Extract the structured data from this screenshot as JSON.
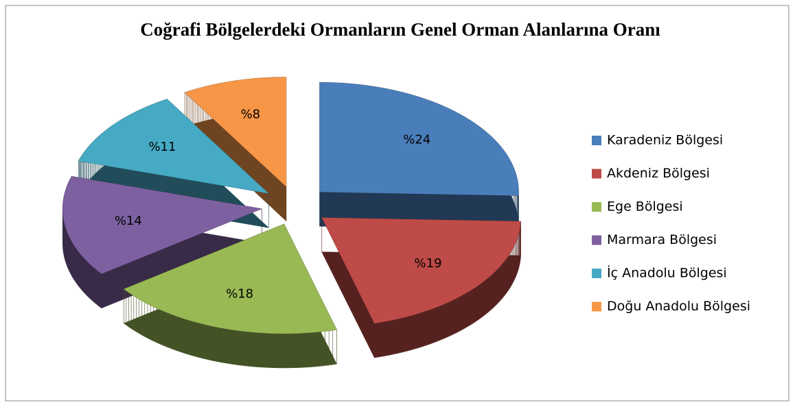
{
  "chart_data": {
    "type": "pie",
    "title": "Coğrafi Bölgelerdeki Ormanların Genel Orman Alanlarına Oranı",
    "categories": [
      "Karadeniz Bölgesi",
      "Akdeniz Bölgesi",
      "Ege Bölgesi",
      "Marmara Bölgesi",
      "İç Anadolu Bölgesi",
      "Doğu Anadolu Bölgesi"
    ],
    "values": [
      24,
      19,
      18,
      14,
      11,
      8
    ],
    "value_labels": [
      "%24",
      "%19",
      "%18",
      "%14",
      "%11",
      "%8"
    ],
    "colors": [
      "#4a7ebb",
      "#be4b48",
      "#98b954",
      "#7d60a0",
      "#46aac5",
      "#f79646"
    ],
    "legend": "right"
  }
}
